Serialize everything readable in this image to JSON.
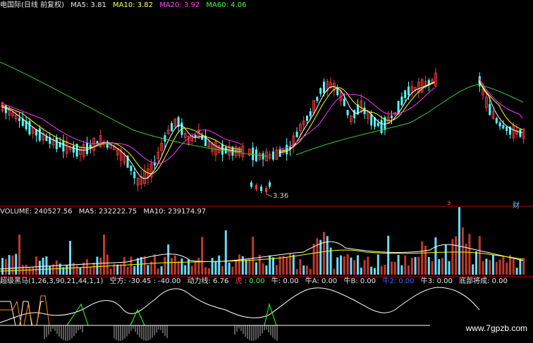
{
  "price_panel": {
    "title": "电国际(日线 前复权)",
    "ma5": "MA5: 3.81",
    "ma10": "MA10: 3.82",
    "ma20": "MA20: 3.92",
    "ma60": "MA60: 4.06",
    "low_label": "3.36",
    "mark_left": "з",
    "mark_right": "财"
  },
  "volume_panel": {
    "volume": "VOLUME: 240527.56",
    "ma5": "MA5: 232222.75",
    "ma10": "MA10: 239174.97"
  },
  "indicator_panel": {
    "name": "超级黑马(1,26,3,90,21,44,1,1)",
    "kongfang": "空方: -30.45",
    "neg40": ": -40.00",
    "dongli": "动力线: 6.76",
    "hu_label": "虎",
    "hu_val": ": 0.00",
    "niu": "牛: 0.00",
    "niuA": "牛A: 0.00",
    "niuB": "牛B: 0.00",
    "niu2_label": "牛2: 0.00",
    "niu3": "牛3: 0.00",
    "dibu": "底部将成: 0.00"
  },
  "watermark": "www.7gpzb.com",
  "colors": {
    "up": "#ff3b3b",
    "down": "#54ffff",
    "ma5": "#ffffff",
    "ma10": "#ffff00",
    "ma20": "#ff33ff",
    "ma60": "#33cc33"
  }
}
